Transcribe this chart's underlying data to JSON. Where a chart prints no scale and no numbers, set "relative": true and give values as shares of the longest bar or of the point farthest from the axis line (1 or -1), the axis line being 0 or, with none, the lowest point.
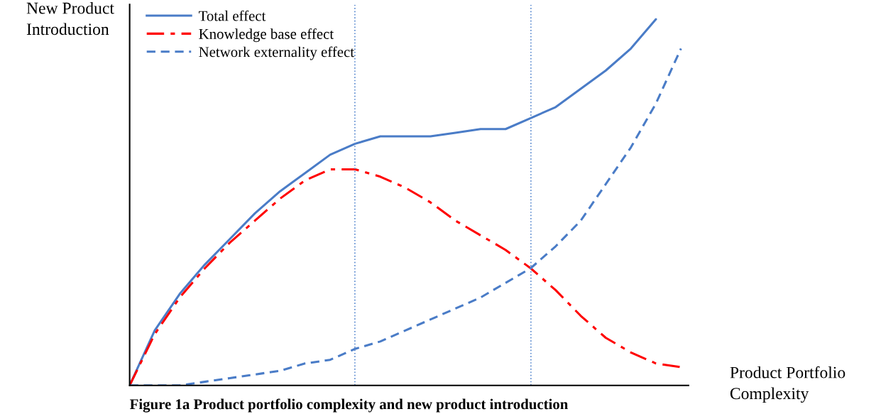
{
  "chart_data": {
    "type": "line",
    "relative": true,
    "ylabel": "New Product\nIntroduction",
    "xlabel": "Product Portfolio\nComplexity",
    "annotations": [
      "Figure 1a Product portfolio complexity and new product introduction"
    ],
    "categories": [
      null,
      null,
      null,
      null,
      null,
      null,
      null,
      null,
      null,
      null,
      null,
      null,
      null,
      null,
      null,
      null,
      null,
      null,
      null,
      null,
      null,
      null,
      null
    ],
    "series": [
      {
        "name": "Total effect",
        "color": "#4a7cc7",
        "line_style": "solid",
        "values": [
          0,
          0.15,
          0.25,
          0.33,
          0.4,
          0.47,
          0.53,
          0.58,
          0.63,
          0.66,
          0.68,
          0.68,
          0.68,
          0.69,
          0.7,
          0.7,
          0.73,
          0.76,
          0.81,
          0.86,
          0.92,
          1,
          null
        ]
      },
      {
        "name": "Knowledge base effect",
        "color": "#ff0000",
        "line_style": "dashdot",
        "values": [
          0,
          0.14,
          0.24,
          0.32,
          0.39,
          0.45,
          0.51,
          0.56,
          0.59,
          0.59,
          0.57,
          0.54,
          0.5,
          0.45,
          0.41,
          0.37,
          0.32,
          0.26,
          0.19,
          0.13,
          0.09,
          0.06,
          0.05
        ]
      },
      {
        "name": "Network externality effect",
        "color": "#4a7cc7",
        "line_style": "dashed",
        "values": [
          0,
          0.0,
          0.0,
          0.01,
          0.02,
          0.03,
          0.04,
          0.06,
          0.07,
          0.1,
          0.12,
          0.15,
          0.18,
          0.21,
          0.24,
          0.28,
          0.32,
          0.38,
          0.45,
          0.55,
          0.65,
          0.77,
          0.92
        ]
      }
    ],
    "legend": "top left",
    "marker": "none"
  }
}
